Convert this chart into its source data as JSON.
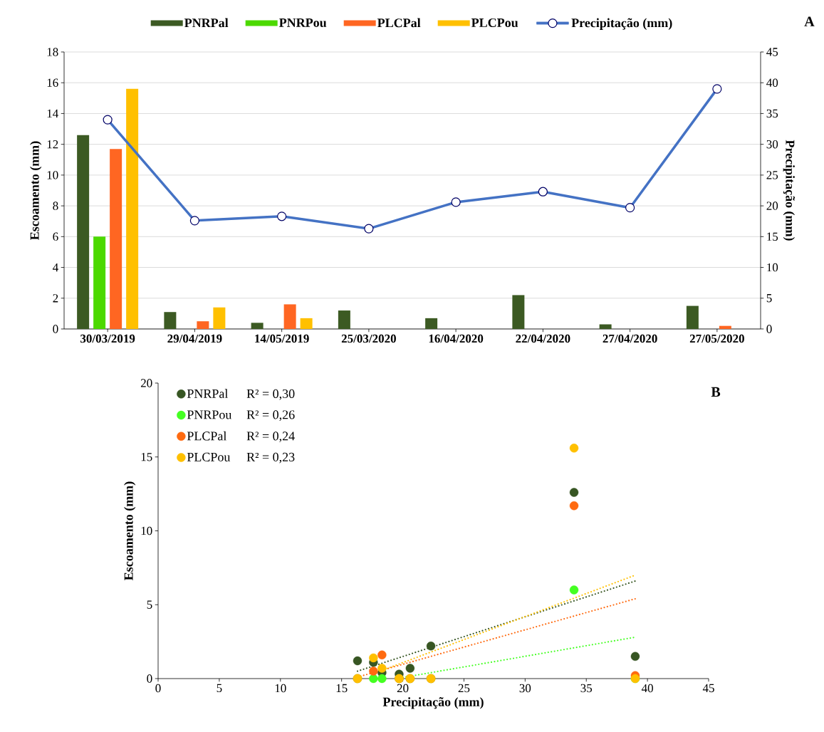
{
  "chart_data": [
    {
      "type": "bar",
      "categories": [
        "30/03/2019",
        "29/04/2019",
        "14/05/2019",
        "25/03/2020",
        "16/04/2020",
        "22/04/2020",
        "27/04/2020",
        "27/05/2020"
      ],
      "series": [
        {
          "name": "PNRPal",
          "color": "#3c5a23",
          "values": [
            12.6,
            1.1,
            0.4,
            1.2,
            0.7,
            2.2,
            0.3,
            1.5
          ]
        },
        {
          "name": "PNRPou",
          "color": "#4cd900",
          "values": [
            6.0,
            0,
            0,
            0,
            0,
            0,
            0,
            0
          ]
        },
        {
          "name": "PLCPal",
          "color": "#ff6622",
          "values": [
            11.7,
            0.5,
            1.6,
            0,
            0,
            0,
            0,
            0.2
          ]
        },
        {
          "name": "PLCPou",
          "color": "#ffc000",
          "values": [
            15.6,
            1.4,
            0.7,
            0,
            0,
            0,
            0,
            0
          ]
        },
        {
          "name": "Precipitação (mm)",
          "type": "line",
          "axis": "y2",
          "color": "#4472c4",
          "marker": "circle",
          "values": [
            34,
            17.6,
            18.3,
            16.3,
            20.6,
            22.3,
            19.7,
            39
          ]
        }
      ],
      "ylabel": "Escoamento (mm)",
      "y2label": "Precipitação (mm)",
      "ylim": [
        0,
        18
      ],
      "yticks": [
        0,
        2,
        4,
        6,
        8,
        10,
        12,
        14,
        16,
        18
      ],
      "y2lim": [
        0,
        45
      ],
      "y2ticks": [
        0,
        5,
        10,
        15,
        20,
        25,
        30,
        35,
        40,
        45
      ],
      "grid": "y",
      "legend": "top",
      "annotations": [
        "A"
      ]
    },
    {
      "type": "scatter",
      "xlabel": "Precipitação (mm)",
      "ylabel": "Escoamento (mm)",
      "xlim": [
        0,
        45
      ],
      "xticks": [
        0,
        5,
        10,
        15,
        20,
        25,
        30,
        35,
        40,
        45
      ],
      "ylim": [
        0,
        20
      ],
      "yticks": [
        0,
        5,
        10,
        15,
        20
      ],
      "legend": "top left",
      "series": [
        {
          "name": "PNRPal",
          "color": "#375623",
          "marker": "circle",
          "x": [
            34,
            17.6,
            18.3,
            16.3,
            20.6,
            22.3,
            19.7,
            39
          ],
          "values": [
            12.6,
            1.1,
            0.4,
            1.2,
            0.7,
            2.2,
            0.3,
            1.5
          ]
        },
        {
          "name": "PNRPou",
          "color": "#44ff22",
          "marker": "circle",
          "x": [
            34,
            17.6,
            18.3,
            16.3,
            20.6,
            22.3,
            19.7,
            39
          ],
          "values": [
            6.0,
            0,
            0,
            0,
            0,
            0,
            0,
            0
          ]
        },
        {
          "name": "PLCPal",
          "color": "#ff6a10",
          "marker": "circle",
          "x": [
            34,
            17.6,
            18.3,
            16.3,
            20.6,
            22.3,
            19.7,
            39
          ],
          "values": [
            11.7,
            0.5,
            1.6,
            0,
            0,
            0,
            0,
            0.2
          ]
        },
        {
          "name": "PLCPou",
          "color": "#ffc000",
          "marker": "circle",
          "x": [
            34,
            17.6,
            18.3,
            16.3,
            20.6,
            22.3,
            19.7,
            39
          ],
          "values": [
            15.6,
            1.4,
            0.7,
            0,
            0,
            0,
            0,
            0
          ]
        },
        {
          "type": "line",
          "line_style": "dotted",
          "color": "#375623",
          "x": [
            16.3,
            39
          ],
          "values": [
            0.5,
            6.6
          ]
        },
        {
          "type": "line",
          "line_style": "dotted",
          "color": "#44ff22",
          "x": [
            19.5,
            39
          ],
          "values": [
            0.0,
            2.8
          ]
        },
        {
          "type": "line",
          "line_style": "dotted",
          "color": "#ff6a10",
          "x": [
            16.3,
            39
          ],
          "values": [
            0.1,
            5.4
          ]
        },
        {
          "type": "line",
          "line_style": "dotted",
          "color": "#ffc000",
          "x": [
            17.5,
            39
          ],
          "values": [
            0.3,
            7.0
          ]
        }
      ],
      "annotations": [
        "R² = 0,30",
        "R² = 0,26",
        "R² = 0,24",
        "R² = 0,23",
        "B"
      ]
    }
  ]
}
